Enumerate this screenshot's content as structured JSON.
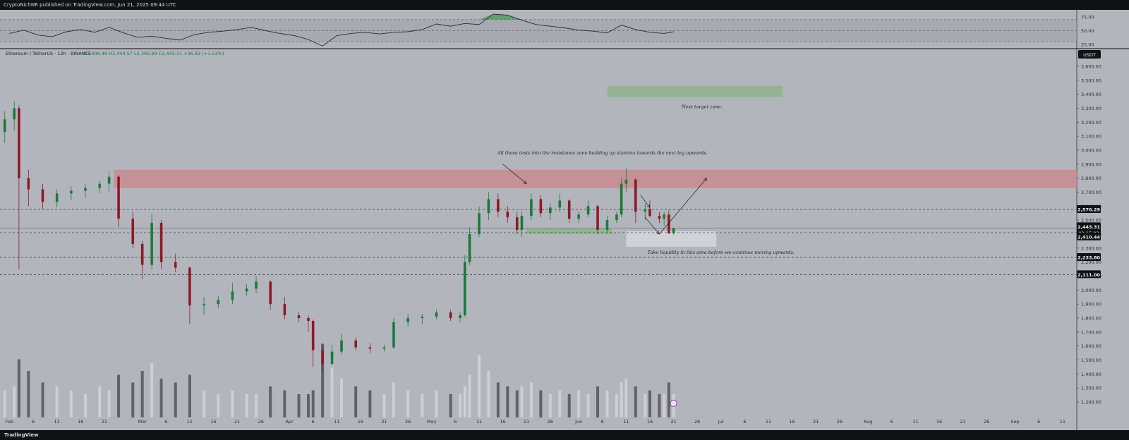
{
  "header": {
    "publisher_line": "CryptoNichNR published on TradingView.com, Jun 21, 2025 09:44 UTC"
  },
  "footer": {
    "logo_text": "TradingView"
  },
  "symbol_line": {
    "name": "Ethereum / TetherUS · 12h · BINANCE",
    "ohlc": "O2,406.49  H2,444.57  L2,395.99  C2,443.31  +36.82 (+1.53%)"
  },
  "currency_label": "USDT",
  "colors": {
    "background": "#b3b5bd",
    "up": "#1b7a3a",
    "down": "#8e1a26",
    "resistance": "#c98a90",
    "support": "#8fb48f",
    "target": "#8fb48f",
    "liquidity": "#d4d5da"
  },
  "chart_data": [
    {
      "type": "line",
      "subtype": "rsi",
      "ylim": [
        20,
        85
      ],
      "yticks": [
        25,
        50,
        75
      ],
      "ytick_labels": [
        "25.00",
        "50.00",
        "75.00"
      ],
      "levels": [
        30,
        50,
        70
      ],
      "overbought_fill": true,
      "x": [
        "2025-02-01",
        "2025-02-04",
        "2025-02-07",
        "2025-02-10",
        "2025-02-13",
        "2025-02-16",
        "2025-02-19",
        "2025-02-22",
        "2025-02-25",
        "2025-02-28",
        "2025-03-03",
        "2025-03-06",
        "2025-03-09",
        "2025-03-12",
        "2025-03-15",
        "2025-03-18",
        "2025-03-21",
        "2025-03-24",
        "2025-03-27",
        "2025-03-30",
        "2025-04-02",
        "2025-04-05",
        "2025-04-08",
        "2025-04-11",
        "2025-04-14",
        "2025-04-17",
        "2025-04-20",
        "2025-04-23",
        "2025-04-26",
        "2025-04-29",
        "2025-05-02",
        "2025-05-05",
        "2025-05-08",
        "2025-05-11",
        "2025-05-14",
        "2025-05-17",
        "2025-05-20",
        "2025-05-23",
        "2025-05-26",
        "2025-05-29",
        "2025-06-01",
        "2025-06-04",
        "2025-06-07",
        "2025-06-10",
        "2025-06-13",
        "2025-06-16",
        "2025-06-19",
        "2025-06-21"
      ],
      "values": [
        45,
        51,
        42,
        39,
        48,
        52,
        47,
        56,
        46,
        38,
        40,
        36,
        33,
        43,
        47,
        49,
        52,
        56,
        50,
        45,
        41,
        34,
        22,
        41,
        45,
        47,
        44,
        47,
        48,
        52,
        62,
        58,
        63,
        61,
        80,
        78,
        69,
        61,
        58,
        55,
        51,
        49,
        46,
        60,
        52,
        47,
        45,
        48
      ]
    },
    {
      "type": "candlestick",
      "title": "Ethereum / TetherUS · 12h · BINANCE",
      "ylim": [
        1150,
        3650
      ],
      "yticks": [
        1200,
        1300,
        1400,
        1500,
        1600,
        1700,
        1800,
        1900,
        2000,
        2100,
        2200,
        2300,
        2400,
        2500,
        2600,
        2700,
        2800,
        2900,
        3000,
        3100,
        3200,
        3300,
        3400,
        3500,
        3600
      ],
      "ytick_labels": [
        "1,200.00",
        "1,300.00",
        "1,400.00",
        "1,500.00",
        "1,600.00",
        "1,700.00",
        "1,800.00",
        "1,900.00",
        "2,000.00",
        "2,100.00",
        "2,200.00",
        "2,300.00",
        "2,400.00",
        "2,500.00",
        "2,600.00",
        "2,700.00",
        "2,800.00",
        "2,900.00",
        "3,000.00",
        "3,100.00",
        "3,200.00",
        "3,300.00",
        "3,400.00",
        "3,500.00",
        "3,600.00"
      ],
      "xticks": [
        {
          "date": "2025-02-01",
          "label": "Feb"
        },
        {
          "date": "2025-02-06",
          "label": "6"
        },
        {
          "date": "2025-02-11",
          "label": "11"
        },
        {
          "date": "2025-02-16",
          "label": "16"
        },
        {
          "date": "2025-02-21",
          "label": "21"
        },
        {
          "date": "2025-03-01",
          "label": "Mar"
        },
        {
          "date": "2025-03-06",
          "label": "6"
        },
        {
          "date": "2025-03-11",
          "label": "11"
        },
        {
          "date": "2025-03-16",
          "label": "16"
        },
        {
          "date": "2025-03-21",
          "label": "21"
        },
        {
          "date": "2025-03-26",
          "label": "26"
        },
        {
          "date": "2025-04-01",
          "label": "Apr"
        },
        {
          "date": "2025-04-06",
          "label": "6"
        },
        {
          "date": "2025-04-11",
          "label": "11"
        },
        {
          "date": "2025-04-16",
          "label": "16"
        },
        {
          "date": "2025-04-21",
          "label": "21"
        },
        {
          "date": "2025-04-26",
          "label": "26"
        },
        {
          "date": "2025-05-01",
          "label": "May"
        },
        {
          "date": "2025-05-06",
          "label": "6"
        },
        {
          "date": "2025-05-11",
          "label": "11"
        },
        {
          "date": "2025-05-16",
          "label": "16"
        },
        {
          "date": "2025-05-21",
          "label": "21"
        },
        {
          "date": "2025-05-26",
          "label": "26"
        },
        {
          "date": "2025-06-01",
          "label": "Jun"
        },
        {
          "date": "2025-06-06",
          "label": "6"
        },
        {
          "date": "2025-06-11",
          "label": "11"
        },
        {
          "date": "2025-06-16",
          "label": "16"
        },
        {
          "date": "2025-06-21",
          "label": "21"
        },
        {
          "date": "2025-06-26",
          "label": "26"
        },
        {
          "date": "2025-07-01",
          "label": "Jul"
        },
        {
          "date": "2025-07-06",
          "label": "6"
        },
        {
          "date": "2025-07-11",
          "label": "11"
        },
        {
          "date": "2025-07-16",
          "label": "16"
        },
        {
          "date": "2025-07-21",
          "label": "21"
        },
        {
          "date": "2025-07-26",
          "label": "26"
        },
        {
          "date": "2025-08-01",
          "label": "Aug"
        },
        {
          "date": "2025-08-06",
          "label": "6"
        },
        {
          "date": "2025-08-11",
          "label": "11"
        },
        {
          "date": "2025-08-16",
          "label": "16"
        },
        {
          "date": "2025-08-21",
          "label": "21"
        },
        {
          "date": "2025-08-26",
          "label": "26"
        },
        {
          "date": "2025-09-01",
          "label": "Sep"
        },
        {
          "date": "2025-09-06",
          "label": "6"
        },
        {
          "date": "2025-09-11",
          "label": "11"
        }
      ],
      "x_range": [
        "2025-01-30",
        "2025-09-14"
      ],
      "candles": [
        [
          "2025-01-31",
          3130,
          3280,
          3050,
          3220
        ],
        [
          "2025-02-02",
          3220,
          3350,
          3140,
          3300
        ],
        [
          "2025-02-03",
          3300,
          3320,
          2150,
          2800
        ],
        [
          "2025-02-05",
          2800,
          2860,
          2600,
          2720
        ],
        [
          "2025-02-08",
          2720,
          2760,
          2580,
          2630
        ],
        [
          "2025-02-11",
          2630,
          2720,
          2590,
          2690
        ],
        [
          "2025-02-14",
          2690,
          2740,
          2640,
          2710
        ],
        [
          "2025-02-17",
          2710,
          2760,
          2660,
          2730
        ],
        [
          "2025-02-20",
          2730,
          2780,
          2690,
          2760
        ],
        [
          "2025-02-22",
          2760,
          2850,
          2700,
          2810
        ],
        [
          "2025-02-24",
          2810,
          2820,
          2450,
          2510
        ],
        [
          "2025-02-27",
          2510,
          2560,
          2300,
          2330
        ],
        [
          "2025-03-01",
          2330,
          2350,
          2080,
          2180
        ],
        [
          "2025-03-03",
          2180,
          2550,
          2150,
          2480
        ],
        [
          "2025-03-05",
          2480,
          2500,
          2150,
          2200
        ],
        [
          "2025-03-08",
          2200,
          2260,
          2130,
          2160
        ],
        [
          "2025-03-11",
          2160,
          2170,
          1760,
          1890
        ],
        [
          "2025-03-14",
          1890,
          1950,
          1820,
          1900
        ],
        [
          "2025-03-17",
          1900,
          1960,
          1870,
          1930
        ],
        [
          "2025-03-20",
          1930,
          2050,
          1900,
          1990
        ],
        [
          "2025-03-23",
          1990,
          2040,
          1960,
          2010
        ],
        [
          "2025-03-25",
          2010,
          2100,
          1980,
          2060
        ],
        [
          "2025-03-28",
          2060,
          2070,
          1860,
          1900
        ],
        [
          "2025-03-31",
          1900,
          1950,
          1790,
          1820
        ],
        [
          "2025-04-03",
          1820,
          1840,
          1770,
          1800
        ],
        [
          "2025-04-05",
          1800,
          1820,
          1700,
          1780
        ],
        [
          "2025-04-06",
          1780,
          1790,
          1450,
          1570
        ],
        [
          "2025-04-08",
          1570,
          1600,
          1410,
          1470
        ],
        [
          "2025-04-10",
          1470,
          1610,
          1440,
          1560
        ],
        [
          "2025-04-12",
          1560,
          1690,
          1540,
          1640
        ],
        [
          "2025-04-15",
          1640,
          1660,
          1570,
          1590
        ],
        [
          "2025-04-18",
          1590,
          1620,
          1550,
          1580
        ],
        [
          "2025-04-21",
          1580,
          1610,
          1560,
          1590
        ],
        [
          "2025-04-23",
          1590,
          1800,
          1580,
          1770
        ],
        [
          "2025-04-26",
          1770,
          1830,
          1740,
          1800
        ],
        [
          "2025-04-29",
          1800,
          1830,
          1760,
          1810
        ],
        [
          "2025-05-02",
          1810,
          1860,
          1790,
          1840
        ],
        [
          "2025-05-05",
          1840,
          1860,
          1780,
          1800
        ],
        [
          "2025-05-07",
          1800,
          1840,
          1770,
          1820
        ],
        [
          "2025-05-08",
          1820,
          2250,
          1810,
          2200
        ],
        [
          "2025-05-09",
          2200,
          2450,
          2180,
          2400
        ],
        [
          "2025-05-11",
          2400,
          2600,
          2380,
          2550
        ],
        [
          "2025-05-13",
          2550,
          2700,
          2500,
          2650
        ],
        [
          "2025-05-15",
          2650,
          2690,
          2520,
          2560
        ],
        [
          "2025-05-17",
          2560,
          2600,
          2480,
          2520
        ],
        [
          "2025-05-19",
          2520,
          2560,
          2400,
          2430
        ],
        [
          "2025-05-20",
          2430,
          2560,
          2380,
          2530
        ],
        [
          "2025-05-22",
          2530,
          2690,
          2500,
          2650
        ],
        [
          "2025-05-24",
          2650,
          2680,
          2520,
          2550
        ],
        [
          "2025-05-26",
          2550,
          2620,
          2500,
          2590
        ],
        [
          "2025-05-28",
          2590,
          2690,
          2560,
          2640
        ],
        [
          "2025-05-30",
          2640,
          2650,
          2480,
          2510
        ],
        [
          "2025-06-01",
          2510,
          2560,
          2480,
          2540
        ],
        [
          "2025-06-03",
          2540,
          2640,
          2520,
          2600
        ],
        [
          "2025-06-05",
          2600,
          2610,
          2400,
          2430
        ],
        [
          "2025-06-07",
          2430,
          2530,
          2410,
          2500
        ],
        [
          "2025-06-09",
          2500,
          2560,
          2480,
          2540
        ],
        [
          "2025-06-10",
          2540,
          2800,
          2520,
          2760
        ],
        [
          "2025-06-11",
          2760,
          2870,
          2700,
          2790
        ],
        [
          "2025-06-13",
          2790,
          2800,
          2480,
          2560
        ],
        [
          "2025-06-15",
          2560,
          2620,
          2500,
          2580
        ],
        [
          "2025-06-16",
          2580,
          2640,
          2520,
          2530
        ],
        [
          "2025-06-18",
          2530,
          2560,
          2480,
          2510
        ],
        [
          "2025-06-19",
          2510,
          2560,
          2460,
          2540
        ],
        [
          "2025-06-20",
          2540,
          2570,
          2400,
          2406
        ],
        [
          "2025-06-21",
          2406,
          2445,
          2396,
          2443
        ]
      ],
      "volume": [
        0.35,
        0.4,
        0.75,
        0.6,
        0.45,
        0.4,
        0.35,
        0.3,
        0.4,
        0.35,
        0.55,
        0.45,
        0.6,
        0.7,
        0.5,
        0.45,
        0.55,
        0.35,
        0.3,
        0.35,
        0.3,
        0.3,
        0.4,
        0.35,
        0.3,
        0.3,
        0.35,
        0.95,
        0.8,
        0.5,
        0.4,
        0.35,
        0.3,
        0.45,
        0.35,
        0.3,
        0.35,
        0.3,
        0.3,
        0.4,
        0.55,
        0.8,
        0.6,
        0.45,
        0.4,
        0.35,
        0.4,
        0.45,
        0.35,
        0.3,
        0.35,
        0.3,
        0.35,
        0.3,
        0.4,
        0.35,
        0.3,
        0.45,
        0.5,
        0.4,
        0.3,
        0.35,
        0.3,
        0.3,
        0.45,
        0.3
      ],
      "zones": [
        {
          "name": "resistance",
          "from": "2025-02-23",
          "to": "2025-09-14",
          "low": 2730,
          "high": 2860
        },
        {
          "name": "support",
          "from": "2025-05-21",
          "to": "2025-06-08",
          "low": 2400,
          "high": 2440
        },
        {
          "name": "liquidity",
          "from": "2025-06-11",
          "to": "2025-06-30",
          "low": 2310,
          "high": 2420
        },
        {
          "name": "target",
          "from": "2025-06-07",
          "to": "2025-07-14",
          "low": 3380,
          "high": 3460
        }
      ],
      "horizontal_lines": [
        2576.29,
        2443.31,
        2410.44,
        2233.8,
        2111.0
      ],
      "price_labels": [
        {
          "value": 2576.29,
          "label": "2,576.29"
        },
        {
          "value": 2443.31,
          "label": "2,443.31"
        },
        {
          "value": 2410.44,
          "label": "2,410.44"
        },
        {
          "value": 2233.8,
          "label": "2,233.80"
        },
        {
          "value": 2111.0,
          "label": "2,111.00"
        }
      ],
      "countdown": "02:15:02",
      "annotations": [
        {
          "text": "Next target zone.",
          "date": "2025-06-27",
          "price": 3300
        },
        {
          "text": "All those tests into the resistance zone building up stamina towards the next leg upwards.",
          "date": "2025-06-06",
          "price": 2970
        },
        {
          "text": "Take liquidity in this area before we continue moving upwards.",
          "date": "2025-07-01",
          "price": 2260
        }
      ],
      "arrows": [
        {
          "from": [
            "2025-05-16",
            2900
          ],
          "to": [
            "2025-05-21",
            2760
          ]
        },
        {
          "from": [
            "2025-06-14",
            2680
          ],
          "to": [
            "2025-06-16",
            2590
          ]
        },
        {
          "from": [
            "2025-06-15",
            2520
          ],
          "to": [
            "2025-06-18",
            2400
          ]
        },
        {
          "from": [
            "2025-06-18",
            2400
          ],
          "to": [
            "2025-06-28",
            2800
          ]
        }
      ]
    }
  ]
}
